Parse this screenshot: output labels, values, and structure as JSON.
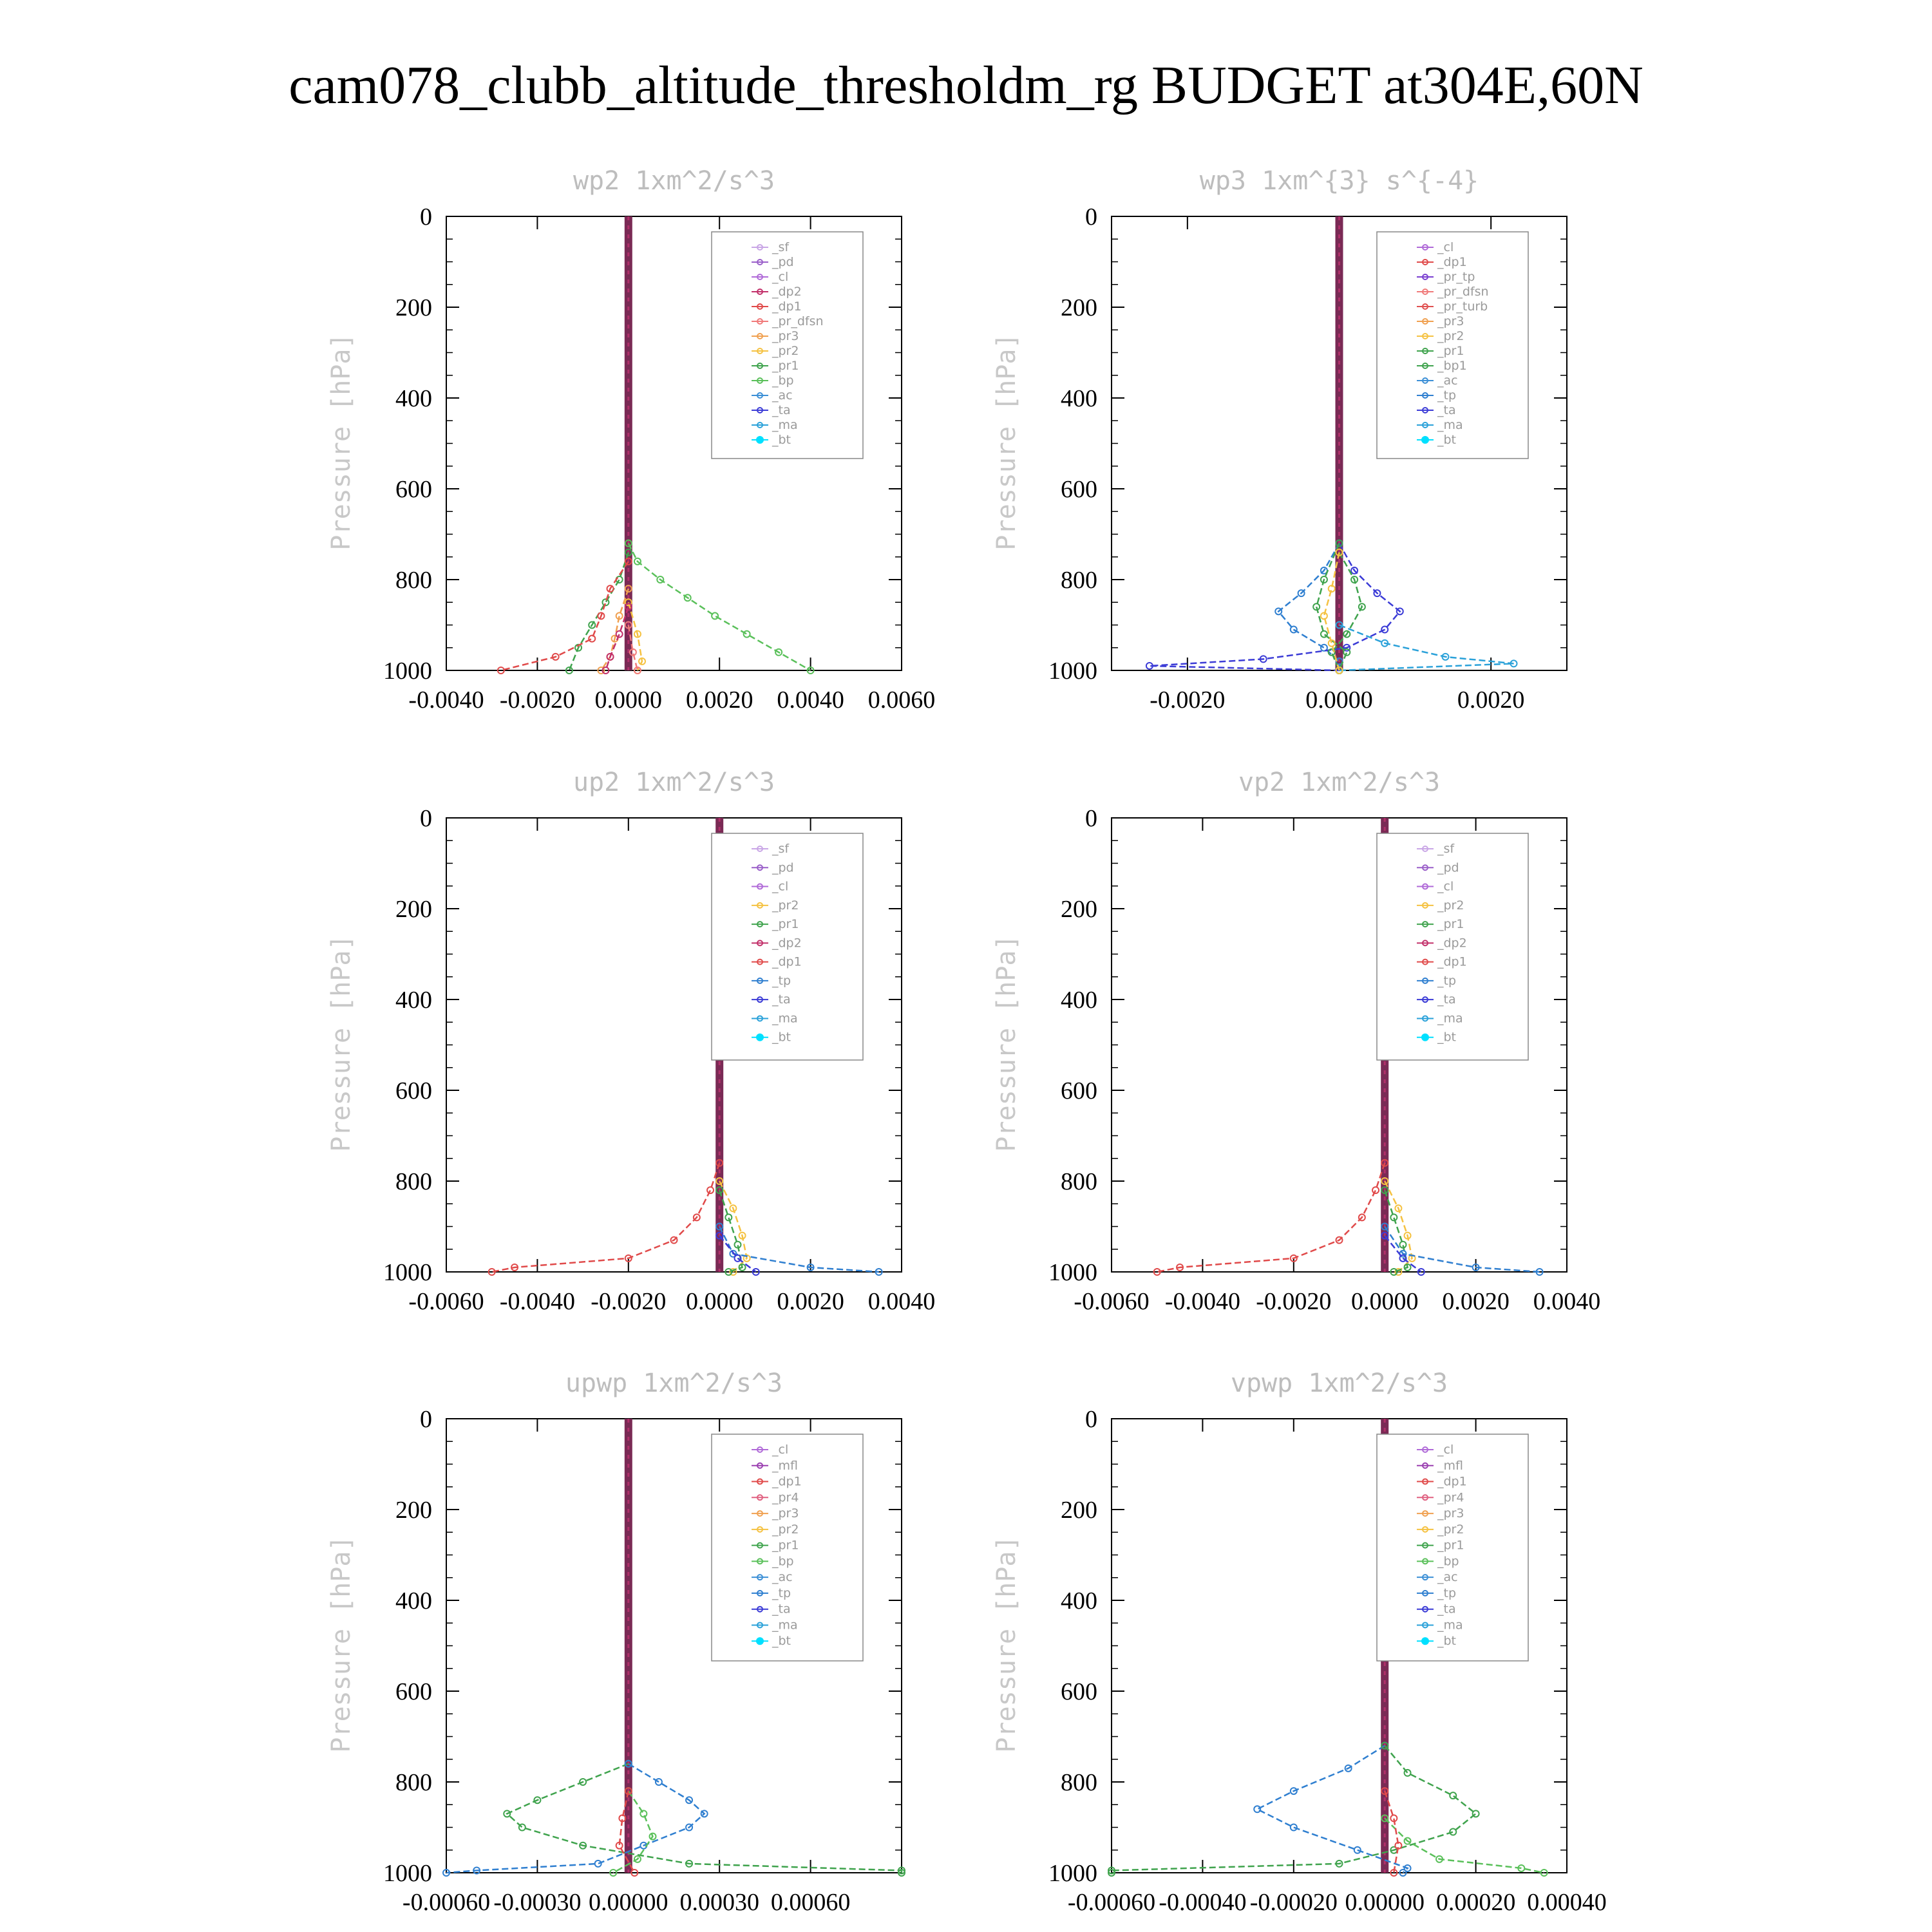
{
  "figure": {
    "title": "cam078_clubb_altitude_thresholdm_rg  BUDGET at304E,60N"
  },
  "colors": {
    "_sf": "#c9a6e6",
    "_pd": "#9a5fc9",
    "_cl": "#b06ad8",
    "_dp2": "#c2306a",
    "_dp1": "#e04a4a",
    "_pr_dfsn": "#f07a7a",
    "_pr3": "#f0a050",
    "_pr2": "#f5c242",
    "_pr1": "#3fa34d",
    "_bp": "#5ac05a",
    "_ac": "#3b8fd6",
    "_ta": "#3b3bd6",
    "_ma": "#2aa1d9",
    "_bt": "#00e0ff",
    "_pr_tp": "#7a3fd0",
    "_pr_turb": "#e05050",
    "_bp1": "#3fa34d",
    "_tp": "#2f7fd0",
    "_mfl": "#9a3fb0",
    "_pr4": "#e06080"
  },
  "chart_data": [
    {
      "type": "line",
      "title": "wp2  1xm^2/s^3",
      "ylabel": "Pressure [hPa]",
      "xlim": [
        -0.004,
        0.006
      ],
      "ylim": [
        1000,
        0
      ],
      "xticks": [
        "-0.0040",
        "-0.0020",
        "0.0000",
        "0.0020",
        "0.0040",
        "0.0060"
      ],
      "yticks": [
        "0",
        "200",
        "400",
        "600",
        "800",
        "1000"
      ],
      "legend_position": "top-right",
      "legend": [
        "_sf",
        "_pd",
        "_cl",
        "_dp2",
        "_dp1",
        "_pr_dfsn",
        "_pr3",
        "_pr2",
        "_pr1",
        "_bp",
        "_ac",
        "_ta",
        "_ma",
        "_bt"
      ],
      "series": [
        {
          "name": "_bp",
          "p": [
            720,
            760,
            800,
            840,
            880,
            920,
            960,
            1000
          ],
          "values": [
            0,
            0.0002,
            0.0007,
            0.0013,
            0.0019,
            0.0026,
            0.0033,
            0.004
          ]
        },
        {
          "name": "_pr1",
          "p": [
            740,
            800,
            850,
            900,
            950,
            1000
          ],
          "values": [
            0,
            -0.0002,
            -0.0005,
            -0.0008,
            -0.0011,
            -0.0013
          ]
        },
        {
          "name": "_dp1",
          "p": [
            760,
            820,
            880,
            930,
            970,
            1000
          ],
          "values": [
            0,
            -0.0004,
            -0.0006,
            -0.0008,
            -0.0016,
            -0.0028
          ]
        },
        {
          "name": "_pr3",
          "p": [
            820,
            880,
            930,
            970,
            1000
          ],
          "values": [
            0,
            -0.0002,
            -0.0003,
            -0.0004,
            -0.0006
          ]
        },
        {
          "name": "_pr2",
          "p": [
            850,
            920,
            980,
            1000
          ],
          "values": [
            0,
            0.0002,
            0.0003,
            0.0002
          ]
        },
        {
          "name": "_dp2",
          "p": [
            860,
            920,
            970,
            1000
          ],
          "values": [
            0,
            -0.0002,
            -0.0004,
            -0.0005
          ]
        },
        {
          "name": "_pr_dfsn",
          "p": [
            900,
            960,
            1000
          ],
          "values": [
            0,
            0.0001,
            0.0002
          ]
        }
      ]
    },
    {
      "type": "line",
      "title": "wp3  1xm^{3} s^{-4}",
      "ylabel": "Pressure [hPa]",
      "xlim": [
        -0.003,
        0.003
      ],
      "ylim": [
        1000,
        0
      ],
      "xticks": [
        "-0.0020",
        "0.0000",
        "0.0020"
      ],
      "yticks": [
        "0",
        "200",
        "400",
        "600",
        "800",
        "1000"
      ],
      "legend_position": "top-right",
      "legend": [
        "_cl",
        "_dp1",
        "_pr_tp",
        "_pr_dfsn",
        "_pr_turb",
        "_pr3",
        "_pr2",
        "_pr1",
        "_bp1",
        "_ac",
        "_tp",
        "_ta",
        "_ma",
        "_bt"
      ],
      "series": [
        {
          "name": "_tp",
          "p": [
            720,
            780,
            830,
            870,
            910,
            950,
            980,
            1000
          ],
          "values": [
            0,
            -0.0002,
            -0.0005,
            -0.0008,
            -0.0006,
            -0.0002,
            0.0,
            0.0
          ]
        },
        {
          "name": "_ta",
          "p": [
            720,
            780,
            830,
            870,
            910,
            950,
            975,
            990,
            1000
          ],
          "values": [
            0,
            0.0002,
            0.0005,
            0.0008,
            0.0006,
            0.0001,
            -0.001,
            -0.0025,
            0.0
          ]
        },
        {
          "name": "_ma",
          "p": [
            900,
            940,
            970,
            985,
            1000
          ],
          "values": [
            0,
            0.0006,
            0.0014,
            0.0023,
            0.0
          ]
        },
        {
          "name": "_bp1",
          "p": [
            740,
            800,
            860,
            920,
            960,
            1000
          ],
          "values": [
            0,
            0.0002,
            0.0003,
            0.0001,
            -0.0001,
            0.0
          ]
        },
        {
          "name": "_pr1",
          "p": [
            720,
            800,
            860,
            920,
            960,
            1000
          ],
          "values": [
            0,
            -0.0002,
            -0.0003,
            -0.0002,
            0.0001,
            0.0
          ]
        },
        {
          "name": "_pr2",
          "p": [
            740,
            820,
            880,
            940,
            1000
          ],
          "values": [
            0,
            -0.0001,
            -0.0002,
            -0.0001,
            0.0
          ]
        }
      ]
    },
    {
      "type": "line",
      "title": "up2  1xm^2/s^3",
      "ylabel": "Pressure [hPa]",
      "xlim": [
        -0.006,
        0.004
      ],
      "ylim": [
        1000,
        0
      ],
      "xticks": [
        "-0.0060",
        "-0.0040",
        "-0.0020",
        "0.0000",
        "0.0020",
        "0.0040"
      ],
      "yticks": [
        "0",
        "200",
        "400",
        "600",
        "800",
        "1000"
      ],
      "legend_position": "top-right",
      "legend": [
        "_sf",
        "_pd",
        "_cl",
        "_pr2",
        "_pr1",
        "_dp2",
        "_dp1",
        "_tp",
        "_ta",
        "_ma",
        "_bt"
      ],
      "series": [
        {
          "name": "_dp1",
          "p": [
            760,
            820,
            880,
            930,
            970,
            990,
            1000
          ],
          "values": [
            0,
            -0.0002,
            -0.0005,
            -0.001,
            -0.002,
            -0.0045,
            -0.005
          ]
        },
        {
          "name": "_pr2",
          "p": [
            800,
            860,
            920,
            970,
            1000
          ],
          "values": [
            0,
            0.0003,
            0.0005,
            0.0006,
            0.0003
          ]
        },
        {
          "name": "_pr1",
          "p": [
            820,
            880,
            940,
            990,
            1000
          ],
          "values": [
            0,
            0.0002,
            0.0004,
            0.0005,
            0.0002
          ]
        },
        {
          "name": "_tp",
          "p": [
            900,
            960,
            990,
            1000
          ],
          "values": [
            0,
            0.0003,
            0.002,
            0.0035
          ]
        },
        {
          "name": "_ta",
          "p": [
            920,
            970,
            1000
          ],
          "values": [
            0,
            0.0004,
            0.0008
          ]
        }
      ]
    },
    {
      "type": "line",
      "title": "vp2  1xm^2/s^3",
      "ylabel": "Pressure [hPa]",
      "xlim": [
        -0.006,
        0.004
      ],
      "ylim": [
        1000,
        0
      ],
      "xticks": [
        "-0.0060",
        "-0.0040",
        "-0.0020",
        "0.0000",
        "0.0020",
        "0.0040"
      ],
      "yticks": [
        "0",
        "200",
        "400",
        "600",
        "800",
        "1000"
      ],
      "legend_position": "top-right",
      "legend": [
        "_sf",
        "_pd",
        "_cl",
        "_pr2",
        "_pr1",
        "_dp2",
        "_dp1",
        "_tp",
        "_ta",
        "_ma",
        "_bt"
      ],
      "series": [
        {
          "name": "_dp1",
          "p": [
            760,
            820,
            880,
            930,
            970,
            990,
            1000
          ],
          "values": [
            0,
            -0.0002,
            -0.0005,
            -0.001,
            -0.002,
            -0.0045,
            -0.005
          ]
        },
        {
          "name": "_pr2",
          "p": [
            800,
            860,
            920,
            970,
            1000
          ],
          "values": [
            0,
            0.0003,
            0.0005,
            0.0006,
            0.0003
          ]
        },
        {
          "name": "_pr1",
          "p": [
            820,
            880,
            940,
            990,
            1000
          ],
          "values": [
            0,
            0.0002,
            0.0004,
            0.0005,
            0.0002
          ]
        },
        {
          "name": "_tp",
          "p": [
            900,
            960,
            990,
            1000
          ],
          "values": [
            0,
            0.0004,
            0.002,
            0.0034
          ]
        },
        {
          "name": "_ta",
          "p": [
            920,
            970,
            1000
          ],
          "values": [
            0,
            0.0004,
            0.0008
          ]
        }
      ]
    },
    {
      "type": "line",
      "title": "upwp  1xm^2/s^3",
      "ylabel": "Pressure [hPa]",
      "xlim": [
        -0.0006,
        0.0009
      ],
      "ylim": [
        1000,
        0
      ],
      "xticks": [
        "-0.00060",
        "-0.00030",
        "0.00000",
        "0.00030",
        "0.00060"
      ],
      "yticks": [
        "0",
        "200",
        "400",
        "600",
        "800",
        "1000"
      ],
      "legend_position": "top-right",
      "legend": [
        "_cl",
        "_mfl",
        "_dp1",
        "_pr4",
        "_pr3",
        "_pr2",
        "_pr1",
        "_bp",
        "_ac",
        "_tp",
        "_ta",
        "_ma",
        "_bt"
      ],
      "series": [
        {
          "name": "_pr1",
          "p": [
            760,
            800,
            840,
            870,
            900,
            940,
            980,
            995,
            1000
          ],
          "values": [
            0,
            -0.00015,
            -0.0003,
            -0.0004,
            -0.00035,
            -0.00015,
            0.0002,
            0.0009,
            0.0009
          ]
        },
        {
          "name": "_tp",
          "p": [
            760,
            800,
            840,
            870,
            900,
            940,
            980,
            995,
            1000
          ],
          "values": [
            0,
            0.0001,
            0.0002,
            0.00025,
            0.0002,
            5e-05,
            -0.0001,
            -0.0005,
            -0.0006
          ]
        },
        {
          "name": "_bp",
          "p": [
            820,
            870,
            920,
            970,
            1000
          ],
          "values": [
            0,
            5e-05,
            8e-05,
            3e-05,
            -5e-05
          ]
        },
        {
          "name": "_dp1",
          "p": [
            820,
            880,
            940,
            1000
          ],
          "values": [
            0,
            -2e-05,
            -3e-05,
            2e-05
          ]
        }
      ]
    },
    {
      "type": "line",
      "title": "vpwp  1xm^2/s^3",
      "ylabel": "Pressure [hPa]",
      "xlim": [
        -0.0006,
        0.0004
      ],
      "ylim": [
        1000,
        0
      ],
      "xticks": [
        "-0.00060",
        "-0.00040",
        "-0.00020",
        "0.00000",
        "0.00020",
        "0.00040"
      ],
      "yticks": [
        "0",
        "200",
        "400",
        "600",
        "800",
        "1000"
      ],
      "legend_position": "top-right",
      "legend": [
        "_cl",
        "_mfl",
        "_dp1",
        "_pr4",
        "_pr3",
        "_pr2",
        "_pr1",
        "_bp",
        "_ac",
        "_tp",
        "_ta",
        "_ma",
        "_bt"
      ],
      "series": [
        {
          "name": "_tp",
          "p": [
            720,
            770,
            820,
            860,
            900,
            950,
            990,
            1000
          ],
          "values": [
            0,
            -8e-05,
            -0.0002,
            -0.00028,
            -0.0002,
            -6e-05,
            5e-05,
            4e-05
          ]
        },
        {
          "name": "_pr1",
          "p": [
            720,
            780,
            830,
            870,
            910,
            950,
            980,
            995,
            1000
          ],
          "values": [
            0,
            5e-05,
            0.00015,
            0.0002,
            0.00015,
            2e-05,
            -0.0001,
            -0.0006,
            -0.0006
          ]
        },
        {
          "name": "_bp",
          "p": [
            880,
            930,
            970,
            990,
            1000
          ],
          "values": [
            0,
            5e-05,
            0.00012,
            0.0003,
            0.00035
          ]
        },
        {
          "name": "_dp1",
          "p": [
            820,
            880,
            940,
            1000
          ],
          "values": [
            0,
            2e-05,
            3e-05,
            2e-05
          ]
        }
      ]
    }
  ]
}
